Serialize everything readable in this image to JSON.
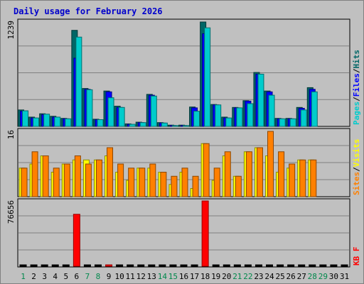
{
  "chart_data": {
    "type": "bar",
    "title": "Daily usage for February 2026",
    "colors": {
      "background": "#c0c0c0",
      "title": "#0000cc",
      "pages": "#00cccc",
      "files": "#0000ff",
      "hits": "#006666",
      "sites": "#ff8000",
      "visits": "#ffff00",
      "kbytes": "#ff0000",
      "weekend_label": "#00884c",
      "weekday_label": "#000000"
    },
    "days": [
      "1",
      "2",
      "3",
      "4",
      "5",
      "6",
      "7",
      "8",
      "9",
      "10",
      "11",
      "12",
      "13",
      "14",
      "15",
      "16",
      "17",
      "18",
      "19",
      "20",
      "21",
      "22",
      "23",
      "24",
      "25",
      "26",
      "27",
      "28",
      "29",
      "30",
      "31"
    ],
    "weekend_days": [
      "1",
      "7",
      "8",
      "14",
      "15",
      "21",
      "22",
      "28",
      "29"
    ],
    "panels": {
      "top": {
        "max_label": "1239",
        "ylim": [
          0,
          1239
        ],
        "legend": [
          {
            "text": "Pages",
            "color": "#00cccc"
          },
          {
            "text": "/",
            "color": "#000000"
          },
          {
            "text": "Files",
            "color": "#0000ff"
          },
          {
            "text": "/",
            "color": "#000000"
          },
          {
            "text": "Hits",
            "color": "#006666"
          }
        ],
        "series": [
          {
            "name": "Hits",
            "values": [
              195,
              110,
              150,
              120,
              95,
              1140,
              450,
              85,
              420,
              240,
              30,
              50,
              380,
              45,
              15,
              15,
              230,
              1239,
              260,
              110,
              225,
              305,
              640,
              420,
              95,
              95,
              225,
              460,
              0,
              0,
              0
            ]
          },
          {
            "name": "Files",
            "values": [
              180,
              100,
              140,
              110,
              90,
              810,
              440,
              80,
              410,
              225,
              25,
              45,
              370,
              40,
              10,
              10,
              220,
              1100,
              255,
              100,
              220,
              300,
              620,
              410,
              90,
              90,
              215,
              440,
              0,
              0,
              0
            ]
          },
          {
            "name": "Pages",
            "values": [
              185,
              100,
              145,
              110,
              90,
              1060,
              435,
              80,
              340,
              225,
              25,
              45,
              360,
              40,
              10,
              10,
              180,
              1170,
              255,
              100,
              220,
              270,
              620,
              370,
              90,
              90,
              195,
              410,
              0,
              0,
              0
            ]
          }
        ]
      },
      "middle": {
        "max_label": "16",
        "ylim": [
          0,
          16
        ],
        "legend": [
          {
            "text": "Sites",
            "color": "#ff8000"
          },
          {
            "text": "/",
            "color": "#000000"
          },
          {
            "text": "Visits",
            "color": "#ffff00"
          }
        ],
        "series": [
          {
            "name": "Visits",
            "values": [
              7,
              8,
              10,
              6,
              8,
              9,
              9,
              9,
              10,
              6,
              4,
              7,
              7,
              6,
              3,
              6,
              2,
              13,
              4,
              10,
              5,
              11,
              12,
              10,
              6,
              7,
              9,
              9,
              0,
              0,
              0
            ]
          },
          {
            "name": "Sites",
            "values": [
              7,
              11,
              10,
              7,
              8,
              10,
              8,
              9,
              12,
              8,
              7,
              7,
              8,
              6,
              5,
              7,
              5,
              13,
              7,
              11,
              5,
              11,
              12,
              16,
              11,
              8,
              9,
              9,
              0,
              0,
              0
            ]
          }
        ]
      },
      "bottom": {
        "max_label": "76656",
        "ylim": [
          0,
          76656
        ],
        "legend": [
          {
            "text": "KB F",
            "color": "#ff0000"
          }
        ],
        "series": [
          {
            "name": "KB F",
            "values": [
              0,
              0,
              0,
              0,
              0,
              61000,
              0,
              0,
              1500,
              0,
              0,
              0,
              0,
              0,
              0,
              0,
              0,
              76656,
              0,
              0,
              0,
              0,
              0,
              0,
              0,
              0,
              0,
              0,
              0,
              0,
              0
            ]
          }
        ]
      }
    }
  }
}
